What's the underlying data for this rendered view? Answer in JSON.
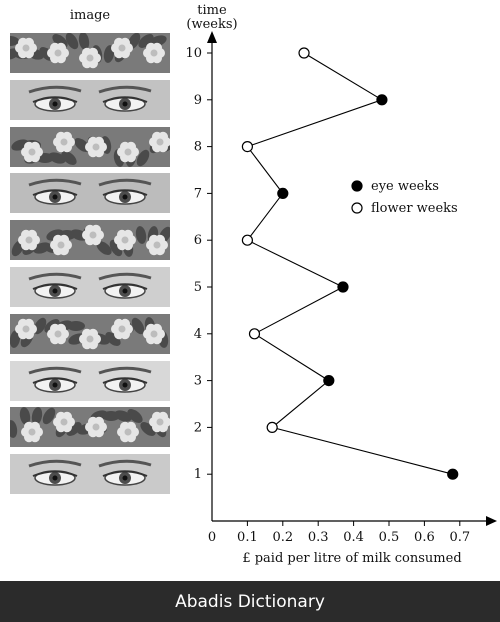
{
  "chart_data": {
    "type": "line",
    "image_column_header": "image",
    "ylabel_lines": [
      "time",
      "(weeks)"
    ],
    "xlabel": "£ paid per litre of milk consumed",
    "x_ticks": [
      "0",
      "0.1",
      "0.2",
      "0.3",
      "0.4",
      "0.5",
      "0.6",
      "0.7"
    ],
    "y_ticks": [
      "1",
      "2",
      "3",
      "4",
      "5",
      "6",
      "7",
      "8",
      "9",
      "10"
    ],
    "xlim": [
      0,
      0.72
    ],
    "ylim": [
      0,
      10.8
    ],
    "grid": false,
    "legend_position": "right",
    "series": [
      {
        "name": "eye weeks",
        "marker": "filled-circle",
        "color": "#000000",
        "points": [
          {
            "week": 1,
            "value": 0.68
          },
          {
            "week": 3,
            "value": 0.33
          },
          {
            "week": 5,
            "value": 0.37
          },
          {
            "week": 7,
            "value": 0.2
          },
          {
            "week": 9,
            "value": 0.48
          }
        ]
      },
      {
        "name": "flower weeks",
        "marker": "open-circle",
        "color": "#000000",
        "points": [
          {
            "week": 2,
            "value": 0.17
          },
          {
            "week": 4,
            "value": 0.12
          },
          {
            "week": 6,
            "value": 0.1
          },
          {
            "week": 8,
            "value": 0.1
          },
          {
            "week": 10,
            "value": 0.26
          }
        ]
      }
    ],
    "connected_sequence": [
      {
        "week": 1,
        "value": 0.68
      },
      {
        "week": 2,
        "value": 0.17
      },
      {
        "week": 3,
        "value": 0.33
      },
      {
        "week": 4,
        "value": 0.12
      },
      {
        "week": 5,
        "value": 0.37
      },
      {
        "week": 6,
        "value": 0.1
      },
      {
        "week": 7,
        "value": 0.2
      },
      {
        "week": 8,
        "value": 0.1
      },
      {
        "week": 9,
        "value": 0.48
      },
      {
        "week": 10,
        "value": 0.26
      }
    ],
    "image_strips": [
      {
        "week": 10,
        "kind": "flowers"
      },
      {
        "week": 9,
        "kind": "eyes"
      },
      {
        "week": 8,
        "kind": "flowers"
      },
      {
        "week": 7,
        "kind": "eyes"
      },
      {
        "week": 6,
        "kind": "flowers"
      },
      {
        "week": 5,
        "kind": "eyes"
      },
      {
        "week": 4,
        "kind": "flowers"
      },
      {
        "week": 3,
        "kind": "eyes"
      },
      {
        "week": 2,
        "kind": "flowers"
      },
      {
        "week": 1,
        "kind": "eyes"
      }
    ]
  },
  "footer": {
    "watermark": "Abadis Dictionary"
  }
}
